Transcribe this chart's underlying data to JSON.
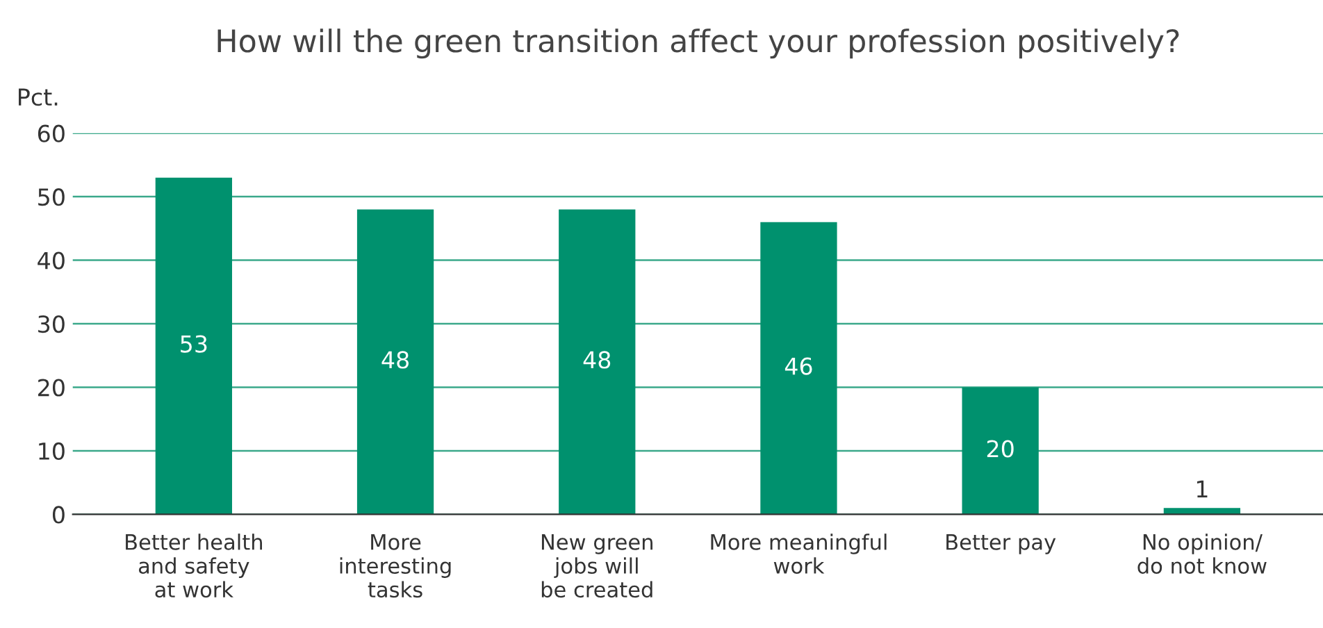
{
  "chart_data": {
    "type": "bar",
    "title": "How will the green transition affect your profession positively?",
    "ylabel": "Pct.",
    "categories": [
      "Better health\nand safety\nat work",
      "More\ninteresting\ntasks",
      "New green\njobs will\nbe created",
      "More meaningful\nwork",
      "Better pay",
      "No opinion/\ndo not know"
    ],
    "values": [
      53,
      48,
      48,
      46,
      20,
      1
    ],
    "color": "#00916e",
    "ylim": [
      0,
      60
    ],
    "yticks": [
      0,
      10,
      20,
      30,
      40,
      50,
      60
    ],
    "grid": "y",
    "data_labels": true
  }
}
